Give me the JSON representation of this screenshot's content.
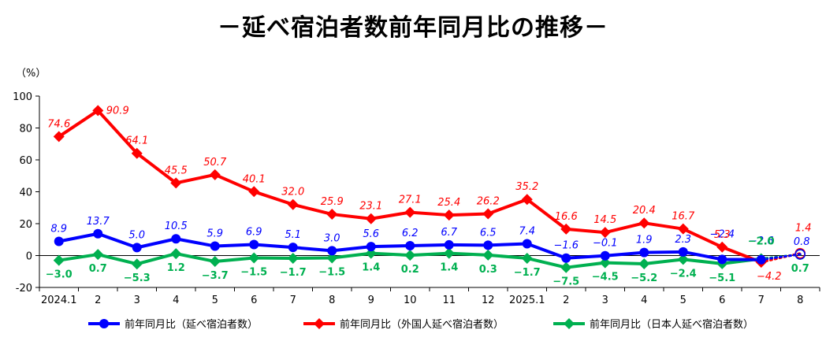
{
  "chart_data": {
    "type": "line",
    "title": "－延べ宿泊者数前年同月比の推移－",
    "ylabel": "（%）",
    "ylim": [
      -20,
      100
    ],
    "yticks": [
      100,
      80,
      60,
      40,
      20,
      0,
      -20
    ],
    "categories": [
      "2024.1",
      "2",
      "3",
      "4",
      "5",
      "6",
      "7",
      "8",
      "9",
      "10",
      "11",
      "12",
      "2025.1",
      "2",
      "3",
      "4",
      "5",
      "6",
      "7",
      "8"
    ],
    "legend_position": "bottom",
    "grid": false,
    "series": [
      {
        "name": "前年同月比（延べ宿泊者数）",
        "color": "#0000ff",
        "marker": "circle",
        "values": [
          8.9,
          13.7,
          5.0,
          10.5,
          5.9,
          6.9,
          5.1,
          3.0,
          5.6,
          6.2,
          6.7,
          6.5,
          7.4,
          -1.6,
          -0.1,
          1.9,
          2.3,
          -2.4,
          -2.6,
          0.8
        ],
        "labels": [
          "8.9",
          "13.7",
          "5.0",
          "10.5",
          "5.9",
          "6.9",
          "5.1",
          "3.0",
          "5.6",
          "6.2",
          "6.7",
          "6.5",
          "7.4",
          "−1.6",
          "−0.1",
          "1.9",
          "2.3",
          "−2.4",
          "−2.6",
          "0.8"
        ]
      },
      {
        "name": "前年同月比（外国人延べ宿泊者数）",
        "color": "#ff0000",
        "marker": "diamond",
        "values": [
          74.6,
          90.9,
          64.1,
          45.5,
          50.7,
          40.1,
          32.0,
          25.9,
          23.1,
          27.1,
          25.4,
          26.2,
          35.2,
          16.6,
          14.5,
          20.4,
          16.7,
          5.3,
          -4.2,
          1.4
        ],
        "labels": [
          "74.6",
          "90.9",
          "64.1",
          "45.5",
          "50.7",
          "40.1",
          "32.0",
          "25.9",
          "23.1",
          "27.1",
          "25.4",
          "26.2",
          "35.2",
          "16.6",
          "14.5",
          "20.4",
          "16.7",
          "5.3",
          "−4.2",
          "1.4"
        ]
      },
      {
        "name": "前年同月比（日本人延べ宿泊者数）",
        "color": "#00b050",
        "marker": "diamond",
        "values": [
          -3.0,
          0.7,
          -5.3,
          1.2,
          -3.7,
          -1.5,
          -1.7,
          -1.5,
          1.4,
          0.2,
          1.4,
          0.3,
          -1.7,
          -7.5,
          -4.5,
          -5.2,
          -2.4,
          -5.1,
          -2.0,
          0.7
        ],
        "labels": [
          "−3.0",
          "0.7",
          "−5.3",
          "1.2",
          "−3.7",
          "−1.5",
          "−1.7",
          "−1.5",
          "1.4",
          "0.2",
          "1.4",
          "0.3",
          "−1.7",
          "−7.5",
          "−4.5",
          "−5.2",
          "−2.4",
          "−5.1",
          "−2.0",
          "0.7"
        ]
      }
    ]
  }
}
